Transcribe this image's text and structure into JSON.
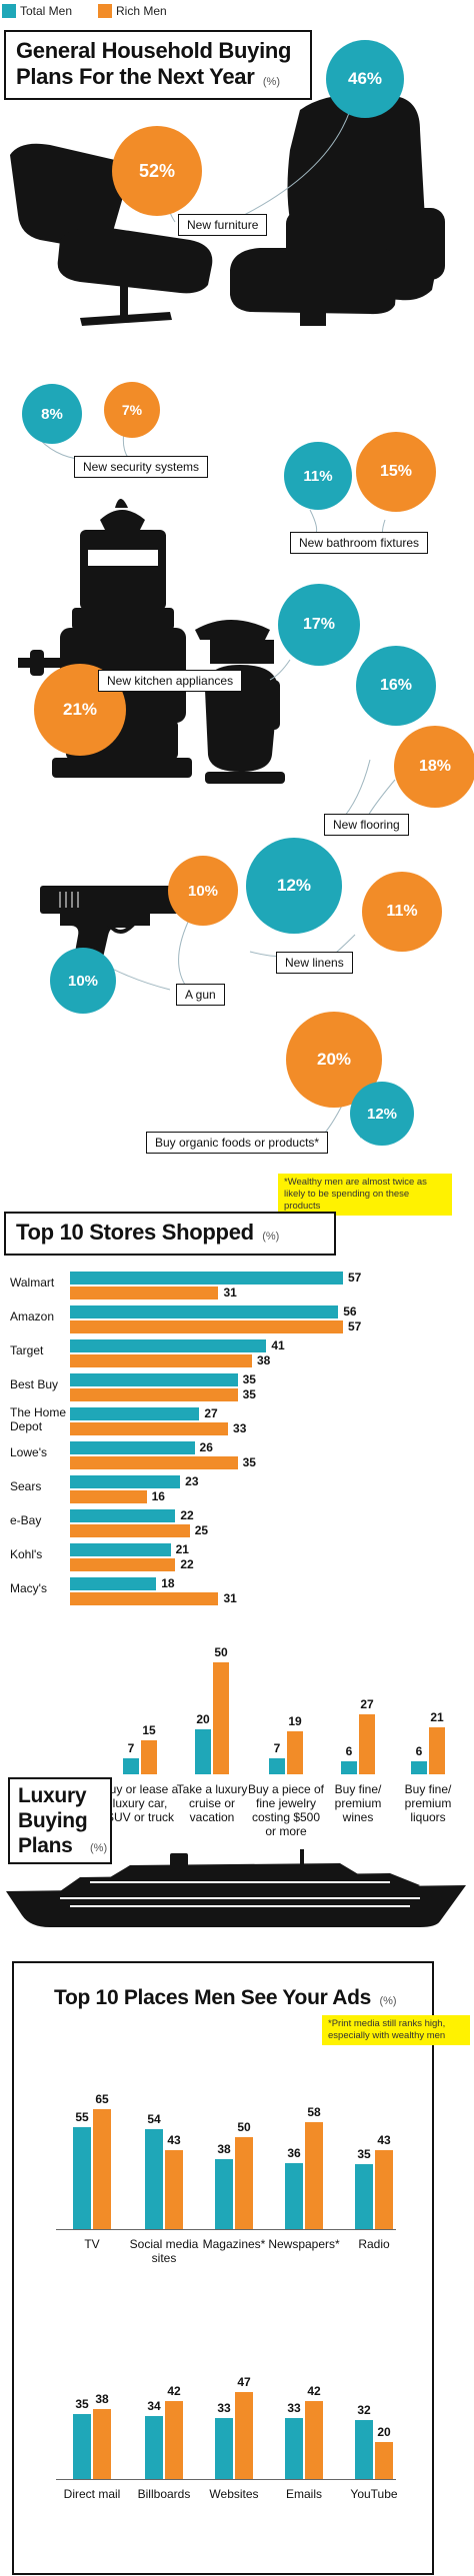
{
  "colors": {
    "teal": "#1fa7b8",
    "orange": "#f28c28",
    "yellow": "#fff200"
  },
  "legend": [
    {
      "name": "Total Men",
      "color": "#1fa7b8"
    },
    {
      "name": "Rich Men",
      "color": "#f28c28"
    }
  ],
  "chart_data": [
    {
      "type": "bubble",
      "title": "General Household Buying Plans For the Next Year",
      "unit": "(%)",
      "categories": [
        "New furniture",
        "New security systems",
        "New bathroom fixtures",
        "New kitchen appliances",
        "New flooring",
        "New linens",
        "A gun",
        "Buy organic foods or products*"
      ],
      "series": [
        {
          "name": "Total Men",
          "values": [
            46,
            8,
            11,
            17,
            16,
            12,
            10,
            12
          ]
        },
        {
          "name": "Rich Men",
          "values": [
            52,
            7,
            15,
            21,
            18,
            11,
            10,
            20
          ]
        }
      ],
      "value_labels": {
        "total": [
          "46%",
          "8%",
          "11%",
          "17%",
          "16%",
          "12%",
          "10%",
          "12%"
        ],
        "rich": [
          "52%",
          "7%",
          "15%",
          "21%",
          "18%",
          "11%",
          "10%",
          "20%"
        ]
      },
      "annotation": "*Wealthy men are almost twice as likely to be spending on these products"
    },
    {
      "type": "bar",
      "orientation": "horizontal",
      "title": "Top 10 Stores Shopped",
      "unit": "(%)",
      "categories": [
        "Walmart",
        "Amazon",
        "Target",
        "Best Buy",
        "The Home Depot",
        "Lowe's",
        "Sears",
        "e-Bay",
        "Kohl's",
        "Macy's"
      ],
      "series": [
        {
          "name": "Total Men",
          "values": [
            57,
            56,
            41,
            35,
            27,
            26,
            23,
            22,
            21,
            18
          ]
        },
        {
          "name": "Rich Men",
          "values": [
            31,
            57,
            38,
            35,
            33,
            35,
            16,
            25,
            22,
            31
          ]
        }
      ],
      "xlim": [
        0,
        60
      ]
    },
    {
      "type": "bar",
      "title": "Luxury Buying Plans",
      "unit": "(%)",
      "categories": [
        "Buy or lease a luxury car, SUV or truck",
        "Take a luxury cruise or vacation",
        "Buy a piece of fine jewelry costing $500 or more",
        "Buy fine/ premium wines",
        "Buy fine/ premium liquors"
      ],
      "series": [
        {
          "name": "Total Men",
          "values": [
            7,
            20,
            7,
            6,
            6
          ]
        },
        {
          "name": "Rich Men",
          "values": [
            15,
            50,
            19,
            27,
            21
          ]
        }
      ],
      "ylim": [
        0,
        50
      ]
    },
    {
      "type": "bar",
      "title": "Top 10 Places Men See Your Ads",
      "unit": "(%)",
      "categories": [
        "TV",
        "Social media sites",
        "Magazines*",
        "Newspapers*",
        "Radio",
        "Direct mail",
        "Billboards",
        "Websites",
        "Emails",
        "YouTube"
      ],
      "series": [
        {
          "name": "Total Men",
          "values": [
            55,
            54,
            38,
            36,
            35,
            35,
            34,
            33,
            33,
            32
          ]
        },
        {
          "name": "Rich Men",
          "values": [
            65,
            43,
            50,
            58,
            43,
            38,
            42,
            47,
            42,
            20
          ]
        }
      ],
      "ylim": [
        0,
        65
      ],
      "annotation": "*Print media still ranks high, especially with wealthy men"
    }
  ]
}
